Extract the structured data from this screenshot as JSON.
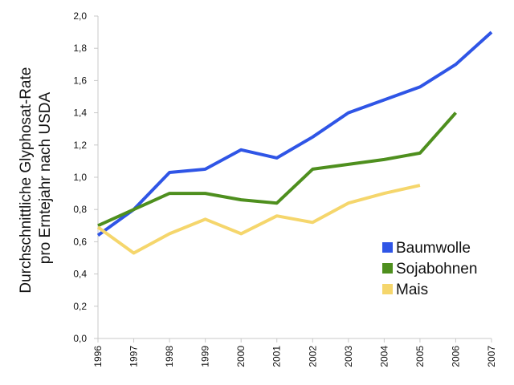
{
  "chart_data": {
    "type": "line",
    "title": "",
    "xlabel": "",
    "ylabel_lines": [
      "Durchschnittliche Glyphosat-Rate",
      "pro Erntejahr nach USDA"
    ],
    "x": [
      1996,
      1997,
      1998,
      1999,
      2000,
      2001,
      2002,
      2003,
      2004,
      2005,
      2006,
      2007
    ],
    "ylim": [
      0,
      2.0
    ],
    "yticks": [
      "0,0",
      "0,2",
      "0,4",
      "0,6",
      "0,8",
      "1,0",
      "1,2",
      "1,4",
      "1,6",
      "1,8",
      "2,0"
    ],
    "grid": false,
    "legend_position": "bottom-right",
    "series": [
      {
        "name": "Baumwolle",
        "color": "#2f55e6",
        "values": [
          0.64,
          0.8,
          1.03,
          1.05,
          1.17,
          1.12,
          1.25,
          1.4,
          1.48,
          1.56,
          1.7,
          1.9
        ]
      },
      {
        "name": "Sojabohnen",
        "color": "#4e8f1e",
        "values": [
          0.7,
          0.8,
          0.9,
          0.9,
          0.86,
          0.84,
          1.05,
          1.08,
          1.11,
          1.15,
          1.4,
          null
        ]
      },
      {
        "name": "Mais",
        "color": "#f5d66c",
        "values": [
          0.69,
          0.53,
          0.65,
          0.74,
          0.65,
          0.76,
          0.72,
          0.84,
          0.9,
          0.95,
          null,
          null
        ]
      }
    ]
  }
}
